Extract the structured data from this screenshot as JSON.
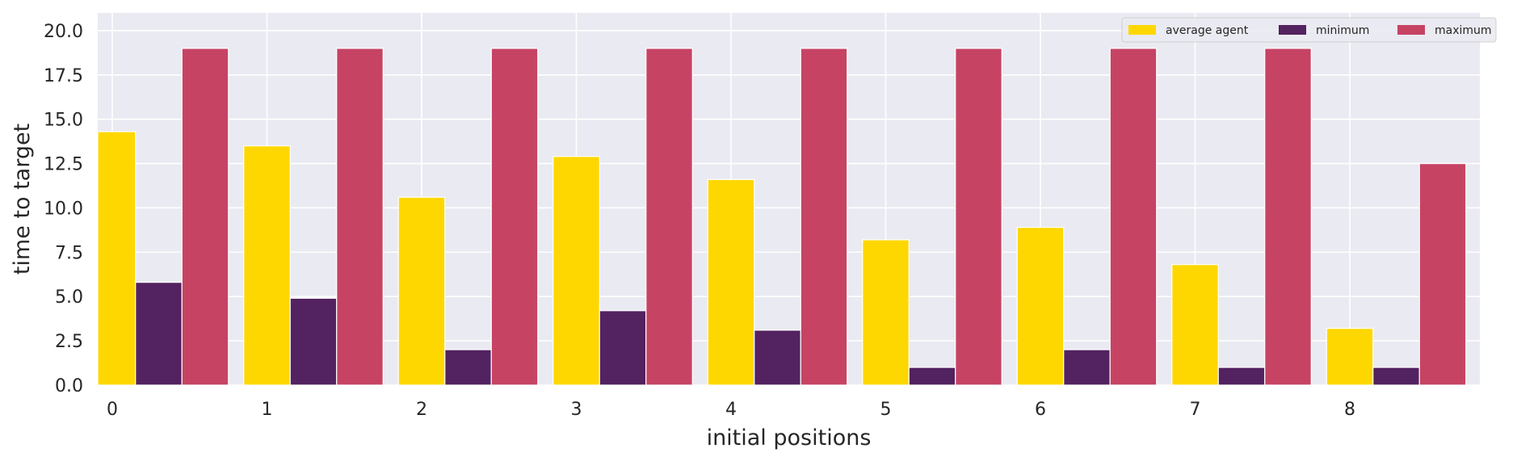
{
  "chart_data": {
    "type": "bar",
    "title": "",
    "xlabel": "initial positions",
    "ylabel": "time to target",
    "categories": [
      "0",
      "1",
      "2",
      "3",
      "4",
      "5",
      "6",
      "7",
      "8"
    ],
    "series": [
      {
        "name": "average agent",
        "color": "#FFD700",
        "values": [
          14.3,
          13.5,
          10.6,
          12.9,
          11.6,
          8.2,
          8.9,
          6.8,
          3.2
        ]
      },
      {
        "name": "minimum",
        "color": "#532260",
        "values": [
          5.8,
          4.9,
          2.0,
          4.2,
          3.1,
          1.0,
          2.0,
          1.0,
          1.0
        ]
      },
      {
        "name": "maximum",
        "color": "#C64364",
        "values": [
          19.0,
          19.0,
          19.0,
          19.0,
          19.0,
          19.0,
          19.0,
          19.0,
          12.5
        ]
      }
    ],
    "ylim": [
      0,
      21
    ],
    "yticks": [
      "0.0",
      "2.5",
      "5.0",
      "7.5",
      "10.0",
      "12.5",
      "15.0",
      "17.5",
      "20.0"
    ],
    "grid": true,
    "legend_position": "top-right",
    "background": "#EAEAF2"
  }
}
